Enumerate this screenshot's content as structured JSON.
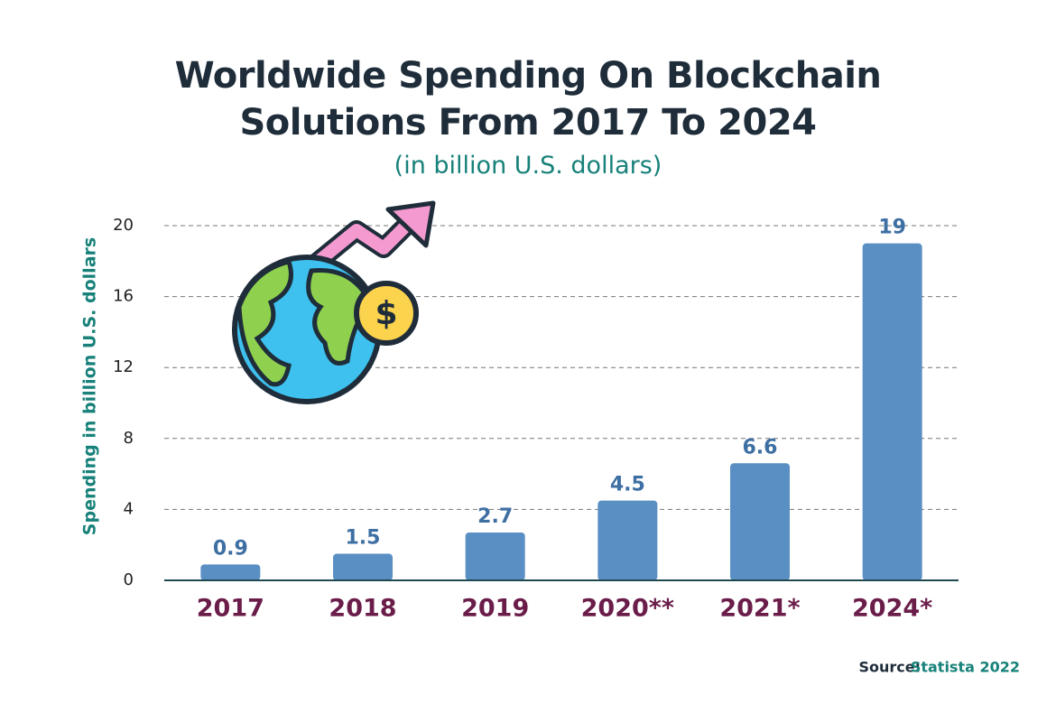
{
  "chart_data": {
    "type": "bar",
    "title": "Worldwide Spending On Blockchain Solutions From 2017 To 2024",
    "subtitle": "(in billion U.S. dollars)",
    "y_label": "Spending in billion U.S. dollars",
    "categories": [
      "2017",
      "2018",
      "2019",
      "2020**",
      "2021*",
      "2024*"
    ],
    "values": [
      0.9,
      1.5,
      2.7,
      4.5,
      6.6,
      19
    ],
    "color": "#5a8fc4",
    "ylim": [
      0,
      20
    ],
    "yticks": [
      0,
      4,
      8,
      12,
      16,
      20
    ],
    "grid": true,
    "source": {
      "label": "Source:",
      "name": "Statista 2022"
    }
  }
}
